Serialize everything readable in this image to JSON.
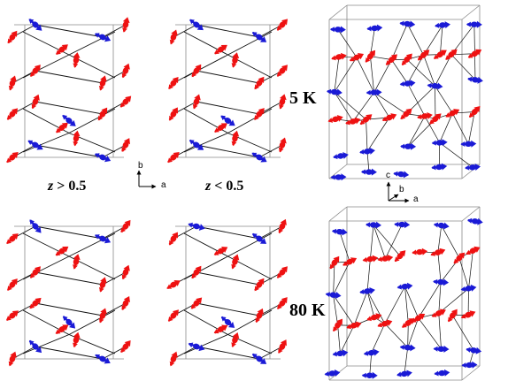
{
  "labels": {
    "temp_5k": "5 K",
    "temp_80k": "80 K",
    "z_greater_var": "z",
    "z_greater_rest": " > 0.5",
    "z_less_var": "z",
    "z_less_rest": " < 0.5"
  },
  "axes_left": {
    "vertical": "b",
    "horizontal": "a"
  },
  "axes_right": {
    "vertical": "c",
    "depth": "b",
    "horizontal": "a"
  },
  "colors": {
    "red_spin": "#ee1111",
    "blue_spin": "#1a1ad6",
    "bond": "#111111",
    "cell": "#8a8a8a"
  },
  "panels": [
    {
      "id": "5K-z-greater",
      "structure": "projection",
      "blue_layer": "outer"
    },
    {
      "id": "5K-z-less",
      "structure": "projection",
      "blue_layer": "outer"
    },
    {
      "id": "5K-3d",
      "structure": "perspective"
    },
    {
      "id": "80K-z-greater",
      "structure": "projection",
      "blue_layer": "outer"
    },
    {
      "id": "80K-z-less",
      "structure": "projection",
      "blue_layer": "outer"
    },
    {
      "id": "80K-3d",
      "structure": "perspective"
    }
  ]
}
